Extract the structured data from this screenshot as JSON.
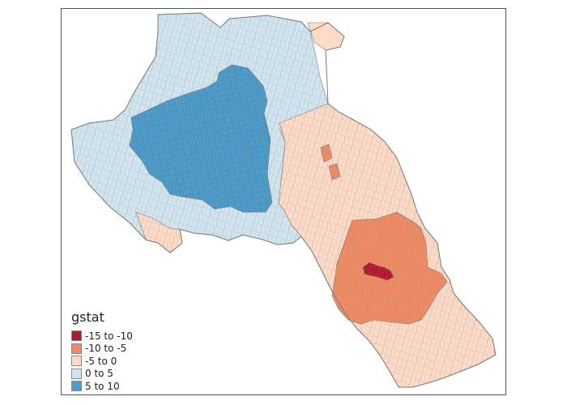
{
  "legend": {
    "title": "gstat",
    "classes": [
      {
        "label": "-15 to -10",
        "color": "#b2182b"
      },
      {
        "label": "-10 to -5",
        "color": "#ef8a62"
      },
      {
        "label": "-5 to 0",
        "color": "#fddbc7"
      },
      {
        "label": "0 to 5",
        "color": "#d1e5f0"
      },
      {
        "label": "5 to 10",
        "color": "#4a9fd0"
      }
    ]
  },
  "colors": {
    "border": "#7a7a7a",
    "frame": "#555555"
  }
}
